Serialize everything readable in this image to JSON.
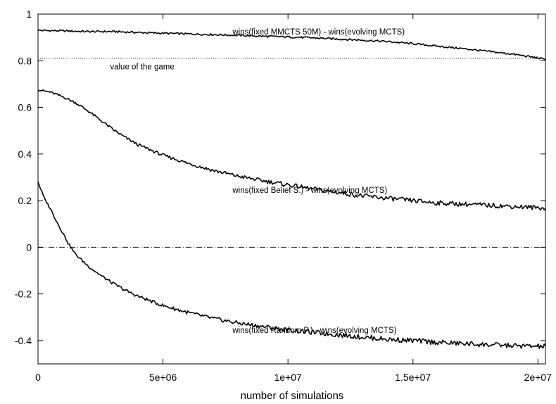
{
  "chart_data": {
    "type": "line",
    "title": "",
    "xlabel": "number of simulations",
    "ylabel": "",
    "xlim": [
      0,
      20300000
    ],
    "ylim": [
      -0.5,
      1
    ],
    "grid": false,
    "x_ticks": [
      {
        "value": 0,
        "label": "0"
      },
      {
        "value": 5000000,
        "label": "5e+06"
      },
      {
        "value": 10000000,
        "label": "1e+07"
      },
      {
        "value": 15000000,
        "label": "1.5e+07"
      },
      {
        "value": 20000000,
        "label": "2e+07"
      }
    ],
    "y_ticks": [
      {
        "value": -0.4,
        "label": "-0.4"
      },
      {
        "value": -0.2,
        "label": "-0.2"
      },
      {
        "value": 0,
        "label": "0"
      },
      {
        "value": 0.2,
        "label": "0.2"
      },
      {
        "value": 0.4,
        "label": "0.4"
      },
      {
        "value": 0.6,
        "label": "0.6"
      },
      {
        "value": 0.8,
        "label": "0.8"
      },
      {
        "value": 1,
        "label": "1"
      }
    ],
    "reference_lines": [
      {
        "label": "value of the game",
        "y": 0.81,
        "style": "dotted"
      },
      {
        "label": "",
        "y": 0,
        "style": "dash-dot"
      }
    ],
    "series": [
      {
        "label": "wins(fixed MMCTS 50M) - wins(evolving MCTS)",
        "x": [
          0,
          1000000,
          2000000,
          3000000,
          4000000,
          5000000,
          6000000,
          7000000,
          8000000,
          9000000,
          10000000,
          11000000,
          12000000,
          13000000,
          14000000,
          15000000,
          16000000,
          17000000,
          18000000,
          19000000,
          20000000,
          20300000
        ],
        "y": [
          0.93,
          0.928,
          0.925,
          0.925,
          0.921,
          0.918,
          0.915,
          0.912,
          0.909,
          0.905,
          0.902,
          0.898,
          0.893,
          0.888,
          0.882,
          0.873,
          0.862,
          0.852,
          0.84,
          0.828,
          0.812,
          0.805
        ]
      },
      {
        "label": "wins(fixed Belief S.) - wins(evolving MCTS)",
        "x": [
          0,
          500000,
          1000000,
          1500000,
          2000000,
          2500000,
          3000000,
          3500000,
          4000000,
          5000000,
          6000000,
          7000000,
          8000000,
          9000000,
          10000000,
          11000000,
          12000000,
          13000000,
          14000000,
          15000000,
          16000000,
          17000000,
          18000000,
          19000000,
          20000000,
          20300000
        ],
        "y": [
          0.675,
          0.665,
          0.645,
          0.62,
          0.585,
          0.545,
          0.505,
          0.47,
          0.44,
          0.395,
          0.36,
          0.33,
          0.305,
          0.285,
          0.268,
          0.25,
          0.235,
          0.22,
          0.21,
          0.2,
          0.19,
          0.185,
          0.18,
          0.175,
          0.17,
          0.168
        ]
      },
      {
        "label": "wins(fixed Random P.) - wins(evolving MCTS)",
        "x": [
          0,
          250000,
          500000,
          750000,
          1000000,
          1250000,
          1500000,
          2000000,
          2500000,
          3000000,
          3500000,
          4000000,
          5000000,
          6000000,
          7000000,
          8000000,
          9000000,
          10000000,
          11000000,
          12000000,
          13000000,
          14000000,
          15000000,
          16000000,
          17000000,
          18000000,
          19000000,
          20000000,
          20300000
        ],
        "y": [
          0.28,
          0.21,
          0.165,
          0.11,
          0.06,
          0.01,
          -0.03,
          -0.08,
          -0.12,
          -0.155,
          -0.185,
          -0.21,
          -0.25,
          -0.28,
          -0.305,
          -0.325,
          -0.34,
          -0.355,
          -0.365,
          -0.375,
          -0.385,
          -0.395,
          -0.4,
          -0.408,
          -0.413,
          -0.418,
          -0.422,
          -0.425,
          -0.425
        ]
      }
    ],
    "annotations": [
      {
        "text": "wins(fixed MMCTS 50M) - wins(evolving MCTS)",
        "x": 7500000,
        "y": 0.925
      },
      {
        "text": "value of the game",
        "x": 2600000,
        "y": 0.775
      },
      {
        "text": "wins(fixed Belief S.) - wins(evolving MCTS)",
        "x": 7500000,
        "y": 0.245
      },
      {
        "text": "wins(fixed Random P.) - wins(evolving MCTS)",
        "x": 7500000,
        "y": -0.355
      }
    ]
  }
}
